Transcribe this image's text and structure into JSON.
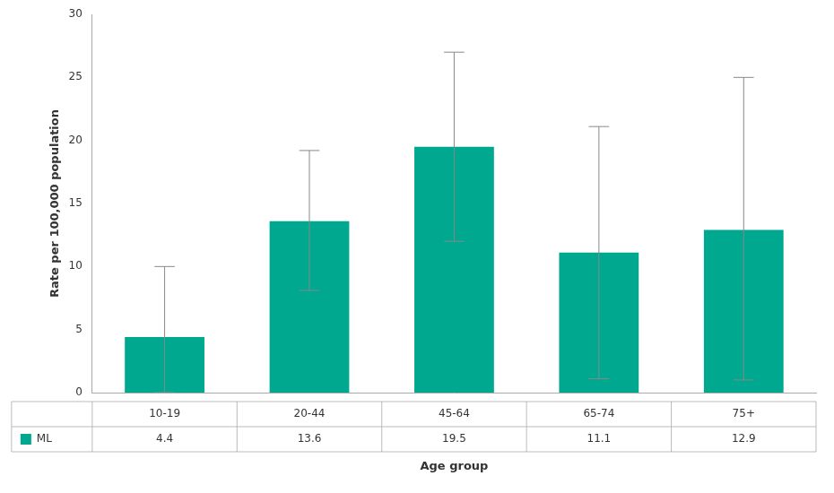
{
  "chart_data": {
    "type": "bar",
    "categories": [
      "10-19",
      "20-44",
      "45-64",
      "65-74",
      "75+"
    ],
    "series": [
      {
        "name": "ML",
        "color": "#00A88F",
        "values": [
          4.4,
          13.6,
          19.5,
          11.1,
          12.9
        ],
        "error_upper": [
          5.6,
          5.6,
          7.5,
          10.0,
          12.1
        ],
        "error_lower": [
          4.4,
          5.5,
          7.5,
          10.0,
          11.9
        ]
      }
    ],
    "ylabel": "Rate per 100,000 population",
    "xlabel": "Age group",
    "ylim": [
      0,
      30
    ],
    "yticks": [
      0,
      5,
      10,
      15,
      20,
      25,
      30
    ],
    "grid": false,
    "data_labels": true
  }
}
